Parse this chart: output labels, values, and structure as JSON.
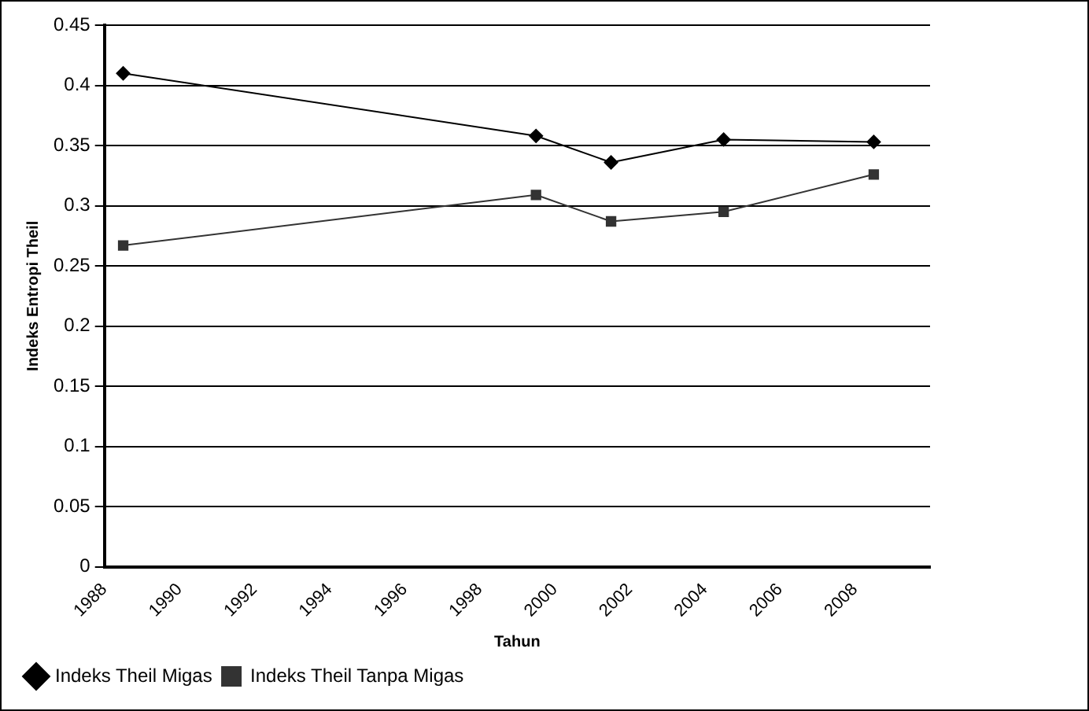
{
  "chart_data": {
    "type": "line",
    "xlabel": "Tahun",
    "ylabel": "Indeks Entropi Theil",
    "xlim": [
      1988,
      2010
    ],
    "xticks": [
      1988,
      1990,
      1992,
      1994,
      1996,
      1998,
      2000,
      2002,
      2004,
      2006,
      2008
    ],
    "ylim": [
      0,
      0.45
    ],
    "yticks": [
      0,
      0.05,
      0.1,
      0.15,
      0.2,
      0.25,
      0.3,
      0.35,
      0.4,
      0.45
    ],
    "x": [
      1988.5,
      1999.5,
      2001.5,
      2004.5,
      2008.5
    ],
    "series": [
      {
        "name": "Indeks Theil Migas",
        "color": "#000000",
        "marker": "diamond",
        "values": [
          0.41,
          0.358,
          0.336,
          0.355,
          0.353
        ]
      },
      {
        "name": "Indeks Theil Tanpa Migas",
        "color": "#333333",
        "marker": "square",
        "values": [
          0.267,
          0.309,
          0.287,
          0.295,
          0.326
        ]
      }
    ],
    "grid": "y",
    "legend": "bottom left"
  }
}
